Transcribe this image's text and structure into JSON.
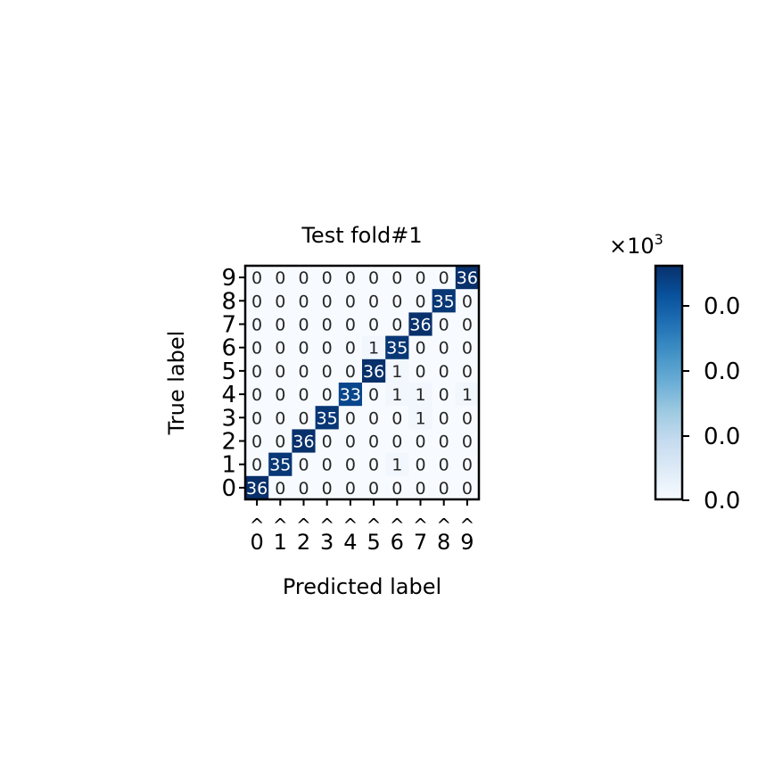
{
  "chart_data": {
    "type": "heatmap",
    "title": "Test fold#1",
    "xlabel": "Predicted label",
    "ylabel": "True label",
    "x_tick_labels": [
      "0",
      "1",
      "2",
      "3",
      "4",
      "5",
      "6",
      "7",
      "8",
      "9"
    ],
    "x_tick_accent": "^",
    "y_tick_labels": [
      "0",
      "1",
      "2",
      "3",
      "4",
      "5",
      "6",
      "7",
      "8",
      "9"
    ],
    "rows_top_to_bottom": [
      "9",
      "8",
      "7",
      "6",
      "5",
      "4",
      "3",
      "2",
      "1",
      "0"
    ],
    "matrix": [
      [
        0,
        0,
        0,
        0,
        0,
        0,
        0,
        0,
        0,
        36
      ],
      [
        0,
        0,
        0,
        0,
        0,
        0,
        0,
        0,
        35,
        0
      ],
      [
        0,
        0,
        0,
        0,
        0,
        0,
        0,
        36,
        0,
        0
      ],
      [
        0,
        0,
        0,
        0,
        0,
        1,
        35,
        0,
        0,
        0
      ],
      [
        0,
        0,
        0,
        0,
        0,
        36,
        1,
        0,
        0,
        0
      ],
      [
        0,
        0,
        0,
        0,
        33,
        0,
        1,
        1,
        0,
        1
      ],
      [
        0,
        0,
        0,
        35,
        0,
        0,
        0,
        1,
        0,
        0
      ],
      [
        0,
        0,
        36,
        0,
        0,
        0,
        0,
        0,
        0,
        0
      ],
      [
        0,
        35,
        0,
        0,
        0,
        0,
        1,
        0,
        0,
        0
      ],
      [
        36,
        0,
        0,
        0,
        0,
        0,
        0,
        0,
        0,
        0
      ]
    ],
    "vmin": 0,
    "vmax": 36,
    "colormap": "Blues",
    "colormap_start": "#f7fbff",
    "colormap_end": "#08306b",
    "colorbar_multiplier": "×10",
    "colorbar_exponent": "3",
    "colorbar_tick_labels": [
      "0.0",
      "0.0",
      "0.0",
      "0.0"
    ]
  }
}
